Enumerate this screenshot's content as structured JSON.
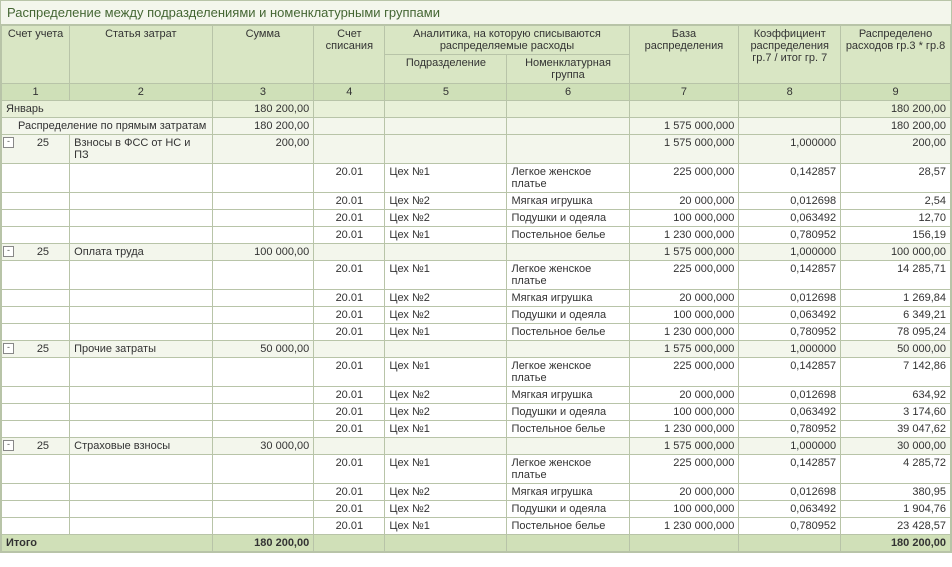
{
  "title": "Распределение между подразделениями и номенклатурными группами",
  "headers": {
    "account": "Счет учета",
    "cost_item": "Статья затрат",
    "sum": "Сумма",
    "writeoff_account": "Счет списания",
    "analytics_group": "Аналитика, на которую списываются распределяемые расходы",
    "subdivision": "Подразделение",
    "nomenclature_group": "Номенклатурная группа",
    "base": "База распределения",
    "coef": "Коэффициент распределения гр.7 / итог гр. 7",
    "distributed": "Распределено расходов гр.3 * гр.8"
  },
  "colnums": [
    "1",
    "2",
    "3",
    "4",
    "5",
    "6",
    "7",
    "8",
    "9"
  ],
  "month_row": {
    "label": "Январь",
    "sum": "180 200,00",
    "dist": "180 200,00"
  },
  "section_row": {
    "label": "Распределение по прямым затратам",
    "sum": "180 200,00",
    "base": "1 575 000,000",
    "dist": "180 200,00"
  },
  "groups": [
    {
      "account": "25",
      "item": "Взносы в ФСС от НС и ПЗ",
      "sum": "200,00",
      "base": "1 575 000,000",
      "coef": "1,000000",
      "dist": "200,00",
      "rows": [
        {
          "wo": "20.01",
          "sub": "Цех №1",
          "nom": "Легкое женское платье",
          "base": "225 000,000",
          "coef": "0,142857",
          "dist": "28,57"
        },
        {
          "wo": "20.01",
          "sub": "Цех №2",
          "nom": "Мягкая игрушка",
          "base": "20 000,000",
          "coef": "0,012698",
          "dist": "2,54"
        },
        {
          "wo": "20.01",
          "sub": "Цех №2",
          "nom": "Подушки и одеяла",
          "base": "100 000,000",
          "coef": "0,063492",
          "dist": "12,70"
        },
        {
          "wo": "20.01",
          "sub": "Цех №1",
          "nom": "Постельное белье",
          "base": "1 230 000,000",
          "coef": "0,780952",
          "dist": "156,19"
        }
      ]
    },
    {
      "account": "25",
      "item": "Оплата труда",
      "sum": "100 000,00",
      "base": "1 575 000,000",
      "coef": "1,000000",
      "dist": "100 000,00",
      "rows": [
        {
          "wo": "20.01",
          "sub": "Цех №1",
          "nom": "Легкое женское платье",
          "base": "225 000,000",
          "coef": "0,142857",
          "dist": "14 285,71"
        },
        {
          "wo": "20.01",
          "sub": "Цех №2",
          "nom": "Мягкая игрушка",
          "base": "20 000,000",
          "coef": "0,012698",
          "dist": "1 269,84"
        },
        {
          "wo": "20.01",
          "sub": "Цех №2",
          "nom": "Подушки и одеяла",
          "base": "100 000,000",
          "coef": "0,063492",
          "dist": "6 349,21"
        },
        {
          "wo": "20.01",
          "sub": "Цех №1",
          "nom": "Постельное белье",
          "base": "1 230 000,000",
          "coef": "0,780952",
          "dist": "78 095,24"
        }
      ]
    },
    {
      "account": "25",
      "item": "Прочие затраты",
      "sum": "50 000,00",
      "base": "1 575 000,000",
      "coef": "1,000000",
      "dist": "50 000,00",
      "rows": [
        {
          "wo": "20.01",
          "sub": "Цех №1",
          "nom": "Легкое женское платье",
          "base": "225 000,000",
          "coef": "0,142857",
          "dist": "7 142,86"
        },
        {
          "wo": "20.01",
          "sub": "Цех №2",
          "nom": "Мягкая игрушка",
          "base": "20 000,000",
          "coef": "0,012698",
          "dist": "634,92"
        },
        {
          "wo": "20.01",
          "sub": "Цех №2",
          "nom": "Подушки и одеяла",
          "base": "100 000,000",
          "coef": "0,063492",
          "dist": "3 174,60"
        },
        {
          "wo": "20.01",
          "sub": "Цех №1",
          "nom": "Постельное белье",
          "base": "1 230 000,000",
          "coef": "0,780952",
          "dist": "39 047,62"
        }
      ]
    },
    {
      "account": "25",
      "item": "Страховые взносы",
      "sum": "30 000,00",
      "base": "1 575 000,000",
      "coef": "1,000000",
      "dist": "30 000,00",
      "rows": [
        {
          "wo": "20.01",
          "sub": "Цех №1",
          "nom": "Легкое женское платье",
          "base": "225 000,000",
          "coef": "0,142857",
          "dist": "4 285,72"
        },
        {
          "wo": "20.01",
          "sub": "Цех №2",
          "nom": "Мягкая игрушка",
          "base": "20 000,000",
          "coef": "0,012698",
          "dist": "380,95"
        },
        {
          "wo": "20.01",
          "sub": "Цех №2",
          "nom": "Подушки и одеяла",
          "base": "100 000,000",
          "coef": "0,063492",
          "dist": "1 904,76"
        },
        {
          "wo": "20.01",
          "sub": "Цех №1",
          "nom": "Постельное белье",
          "base": "1 230 000,000",
          "coef": "0,780952",
          "dist": "23 428,57"
        }
      ]
    }
  ],
  "total": {
    "label": "Итого",
    "sum": "180 200,00",
    "dist": "180 200,00"
  },
  "colors": {
    "border": "#b8c4a8",
    "header_bg": "#d9e6c4",
    "subheader_bg": "#cfe0b8",
    "shade_bg": "#e8f0d8",
    "light_bg": "#f3f6ec",
    "total_bg": "#d0e0b8"
  }
}
